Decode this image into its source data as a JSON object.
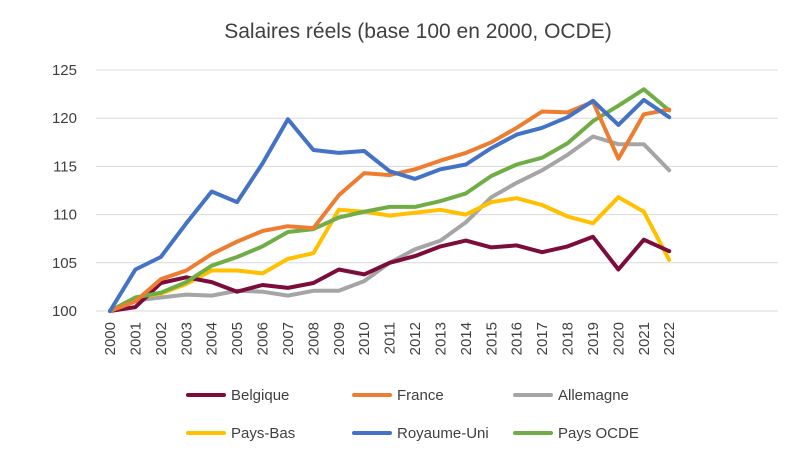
{
  "chart_data": {
    "type": "line",
    "title": "Salaires réels (base 100 en 2000, OCDE)",
    "xlabel": "",
    "ylabel": "",
    "ylim": [
      100,
      125
    ],
    "yticks": [
      100,
      105,
      110,
      115,
      120,
      125
    ],
    "grid": true,
    "legend_position": "bottom",
    "categories": [
      "2000",
      "2001",
      "2002",
      "2003",
      "2004",
      "2005",
      "2006",
      "2007",
      "2008",
      "2009",
      "2010",
      "2011",
      "2012",
      "2013",
      "2014",
      "2015",
      "2016",
      "2017",
      "2018",
      "2019",
      "2020",
      "2021",
      "2022"
    ],
    "series": [
      {
        "name": "Belgique",
        "color": "#7b0c3c",
        "values": [
          100,
          100.4,
          102.9,
          103.5,
          103.0,
          102.0,
          102.7,
          102.4,
          102.9,
          104.3,
          103.8,
          105.0,
          105.7,
          106.7,
          107.3,
          106.6,
          106.8,
          106.1,
          106.7,
          107.7,
          104.3,
          107.4,
          106.2
        ]
      },
      {
        "name": "France",
        "color": "#ed7d31",
        "values": [
          100,
          101.0,
          103.3,
          104.2,
          105.9,
          107.2,
          108.3,
          108.8,
          108.6,
          112.0,
          114.3,
          114.1,
          114.7,
          115.6,
          116.4,
          117.5,
          119.0,
          120.7,
          120.6,
          121.7,
          115.8,
          120.4,
          120.9
        ]
      },
      {
        "name": "Allemagne",
        "color": "#a5a5a5",
        "values": [
          100,
          101.1,
          101.4,
          101.7,
          101.6,
          102.1,
          102.0,
          101.6,
          102.1,
          102.1,
          103.1,
          105.0,
          106.4,
          107.3,
          109.2,
          111.8,
          113.3,
          114.6,
          116.2,
          118.1,
          117.3,
          117.3,
          114.6
        ]
      },
      {
        "name": "Pays-Bas",
        "color": "#ffc000",
        "values": [
          100,
          101.4,
          101.8,
          102.8,
          104.2,
          104.2,
          103.9,
          105.4,
          106.0,
          110.5,
          110.3,
          109.9,
          110.2,
          110.5,
          110.0,
          111.3,
          111.7,
          111.0,
          109.8,
          109.1,
          111.8,
          110.3,
          105.3
        ]
      },
      {
        "name": "Royaume-Uni",
        "color": "#4472c4",
        "values": [
          100,
          104.3,
          105.6,
          109.1,
          112.4,
          111.3,
          115.3,
          119.9,
          116.7,
          116.4,
          116.6,
          114.5,
          113.7,
          114.7,
          115.2,
          116.9,
          118.3,
          119.0,
          120.1,
          121.8,
          119.3,
          121.9,
          120.1
        ]
      },
      {
        "name": "Pays OCDE",
        "color": "#70ad47",
        "values": [
          100,
          101.4,
          101.9,
          103.0,
          104.7,
          105.6,
          106.7,
          108.2,
          108.5,
          109.7,
          110.3,
          110.8,
          110.8,
          111.4,
          112.2,
          114.0,
          115.2,
          115.9,
          117.4,
          119.7,
          121.3,
          123.0,
          120.8
        ]
      }
    ]
  }
}
